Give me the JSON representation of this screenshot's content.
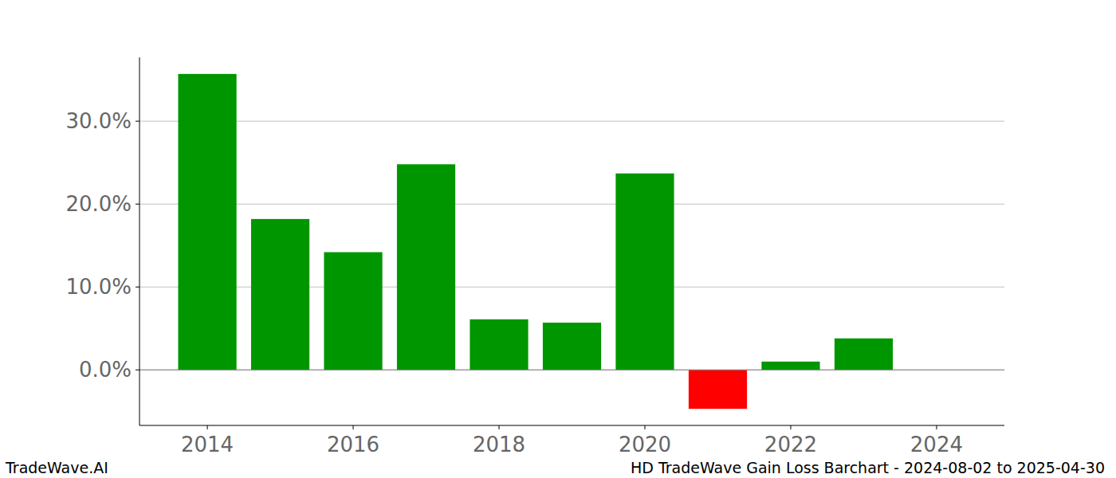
{
  "chart_data": {
    "type": "bar",
    "title": "HD TradeWave Gain Loss Barchart - 2024-08-02 to 2025-04-30",
    "source": "TradeWave.AI",
    "x": [
      2014,
      2015,
      2016,
      2017,
      2018,
      2019,
      2020,
      2021,
      2022,
      2023
    ],
    "values": [
      35.7,
      18.2,
      14.2,
      24.8,
      6.1,
      5.7,
      23.7,
      -4.7,
      1.0,
      3.8
    ],
    "colors": [
      "#009600",
      "#009600",
      "#009600",
      "#009600",
      "#009600",
      "#009600",
      "#009600",
      "#ff0000",
      "#009600",
      "#009600"
    ],
    "xlim": [
      2013.07,
      2024.93
    ],
    "xticks": [
      2014,
      2016,
      2018,
      2020,
      2022,
      2024
    ],
    "ylim": [
      -6.7,
      37.7
    ],
    "yticks": [
      {
        "value": 0,
        "label": "0.0%"
      },
      {
        "value": 10,
        "label": "10.0%"
      },
      {
        "value": 20,
        "label": "20.0%"
      },
      {
        "value": 30,
        "label": "30.0%"
      }
    ],
    "grid": true
  }
}
